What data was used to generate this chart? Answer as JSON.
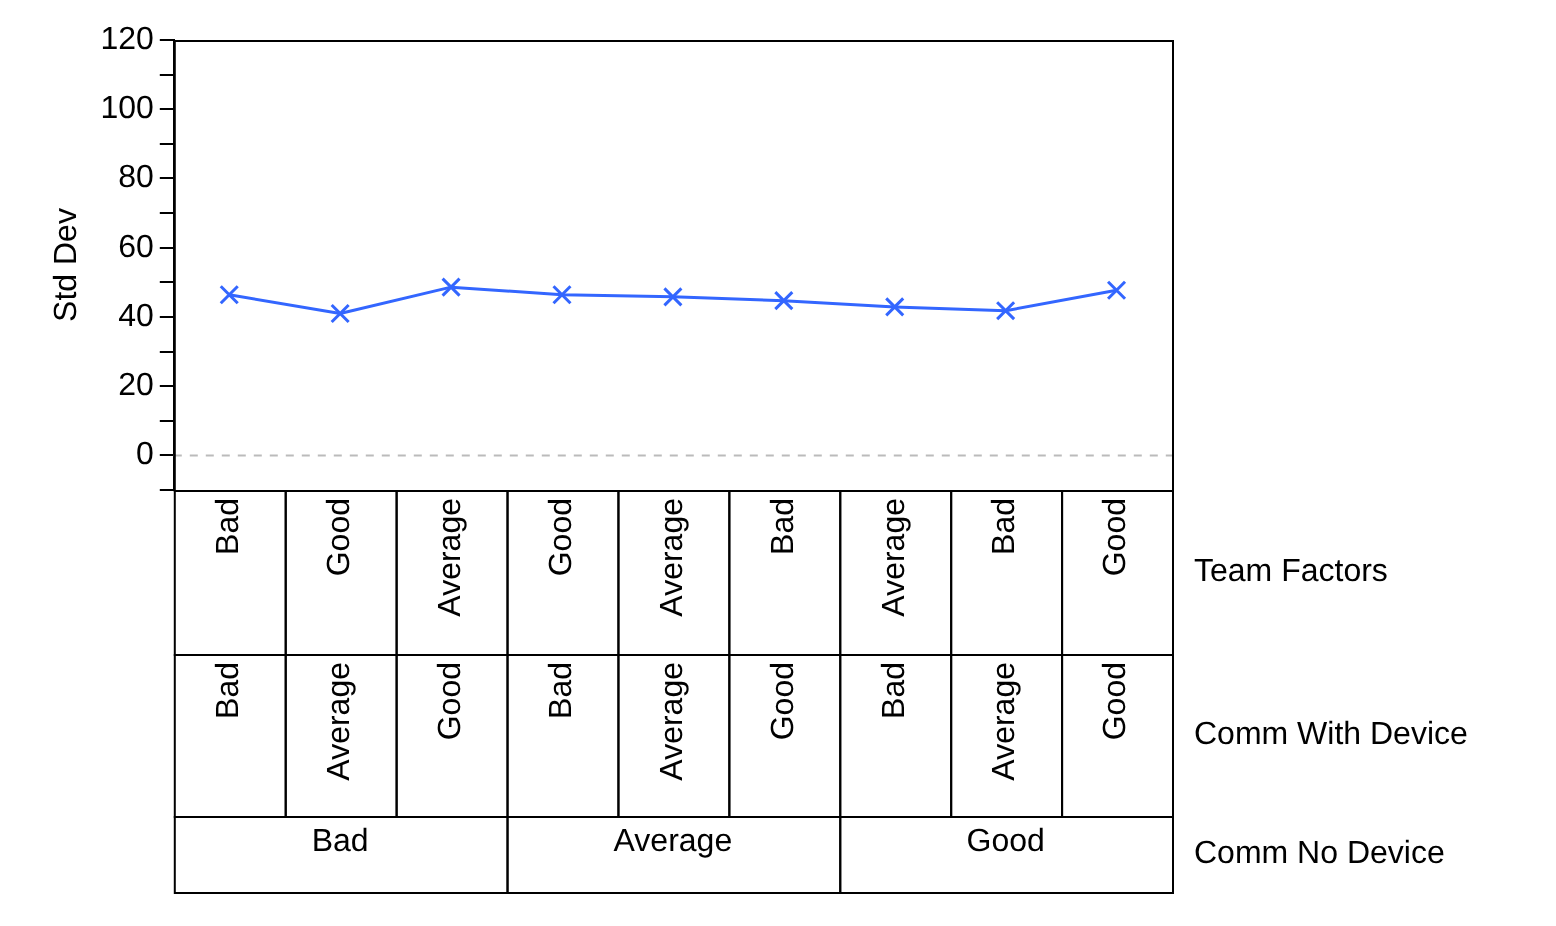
{
  "chart_data": {
    "type": "line",
    "ylabel": "Std Dev",
    "categories": [
      "Bad",
      "Good",
      "Average",
      "Good",
      "Average",
      "Bad",
      "Average",
      "Bad",
      "Good"
    ],
    "series": [
      {
        "color": "#3366ff",
        "values": [
          46.4,
          41,
          48.6,
          46.4,
          45.8,
          44.7,
          42.9,
          41.8,
          47.7
        ]
      }
    ],
    "ylim": [
      -10,
      120
    ],
    "yticks": [
      {
        "value": -10,
        "label": null
      },
      0,
      {
        "value": 10,
        "label": null
      },
      20,
      {
        "value": 30,
        "label": null
      },
      40,
      {
        "value": 50,
        "label": null
      },
      60,
      {
        "value": 70,
        "label": null
      },
      80,
      {
        "value": 90,
        "label": null
      },
      100,
      {
        "value": 110,
        "label": null
      },
      120
    ],
    "ref_lines": [
      {
        "axis": "y",
        "value": 0,
        "color": "#bbbbbb",
        "line_style": "dashed"
      }
    ],
    "marker": "cross",
    "line_style": "solid",
    "grid": false,
    "legend": false,
    "annotations": [
      "Bad",
      "Average",
      "Good",
      "Bad",
      "Average",
      "Good",
      "Bad",
      "Average",
      "Good",
      "Bad",
      "Average",
      "Good",
      "Team Factors",
      "Comm With Device",
      "Comm No Device"
    ]
  }
}
